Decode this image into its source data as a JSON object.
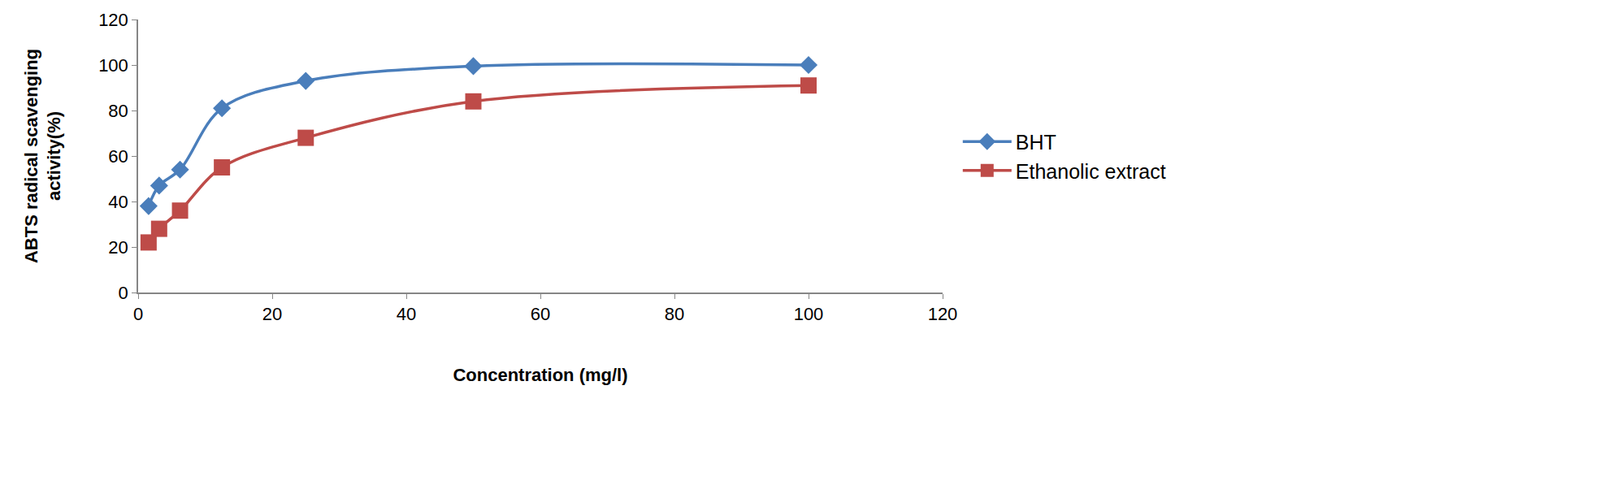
{
  "chart_data": {
    "type": "line",
    "x_label": "Concentration (mg/l)",
    "y_label": "ABTS radical scavenging activity(%)",
    "xlim": [
      0,
      120
    ],
    "xticks": [
      0,
      20,
      40,
      60,
      80,
      100,
      120
    ],
    "ylim": [
      0,
      120
    ],
    "yticks": [
      0,
      20,
      40,
      60,
      80,
      100,
      120
    ],
    "grid": false,
    "legend": "right",
    "series": [
      {
        "name": "BHT",
        "color": "#4a7ebb",
        "marker": "diamond",
        "line_style": "smooth",
        "x": [
          1.56,
          3.13,
          6.25,
          12.5,
          25,
          50,
          100
        ],
        "values": [
          38,
          47,
          54,
          81,
          93,
          99.5,
          100
        ]
      },
      {
        "name": "Ethanolic extract",
        "color": "#be4b48",
        "marker": "square",
        "line_style": "smooth",
        "x": [
          1.56,
          3.13,
          6.25,
          12.5,
          25,
          50,
          100
        ],
        "values": [
          22,
          28,
          36,
          55,
          68,
          84,
          91
        ]
      }
    ]
  }
}
